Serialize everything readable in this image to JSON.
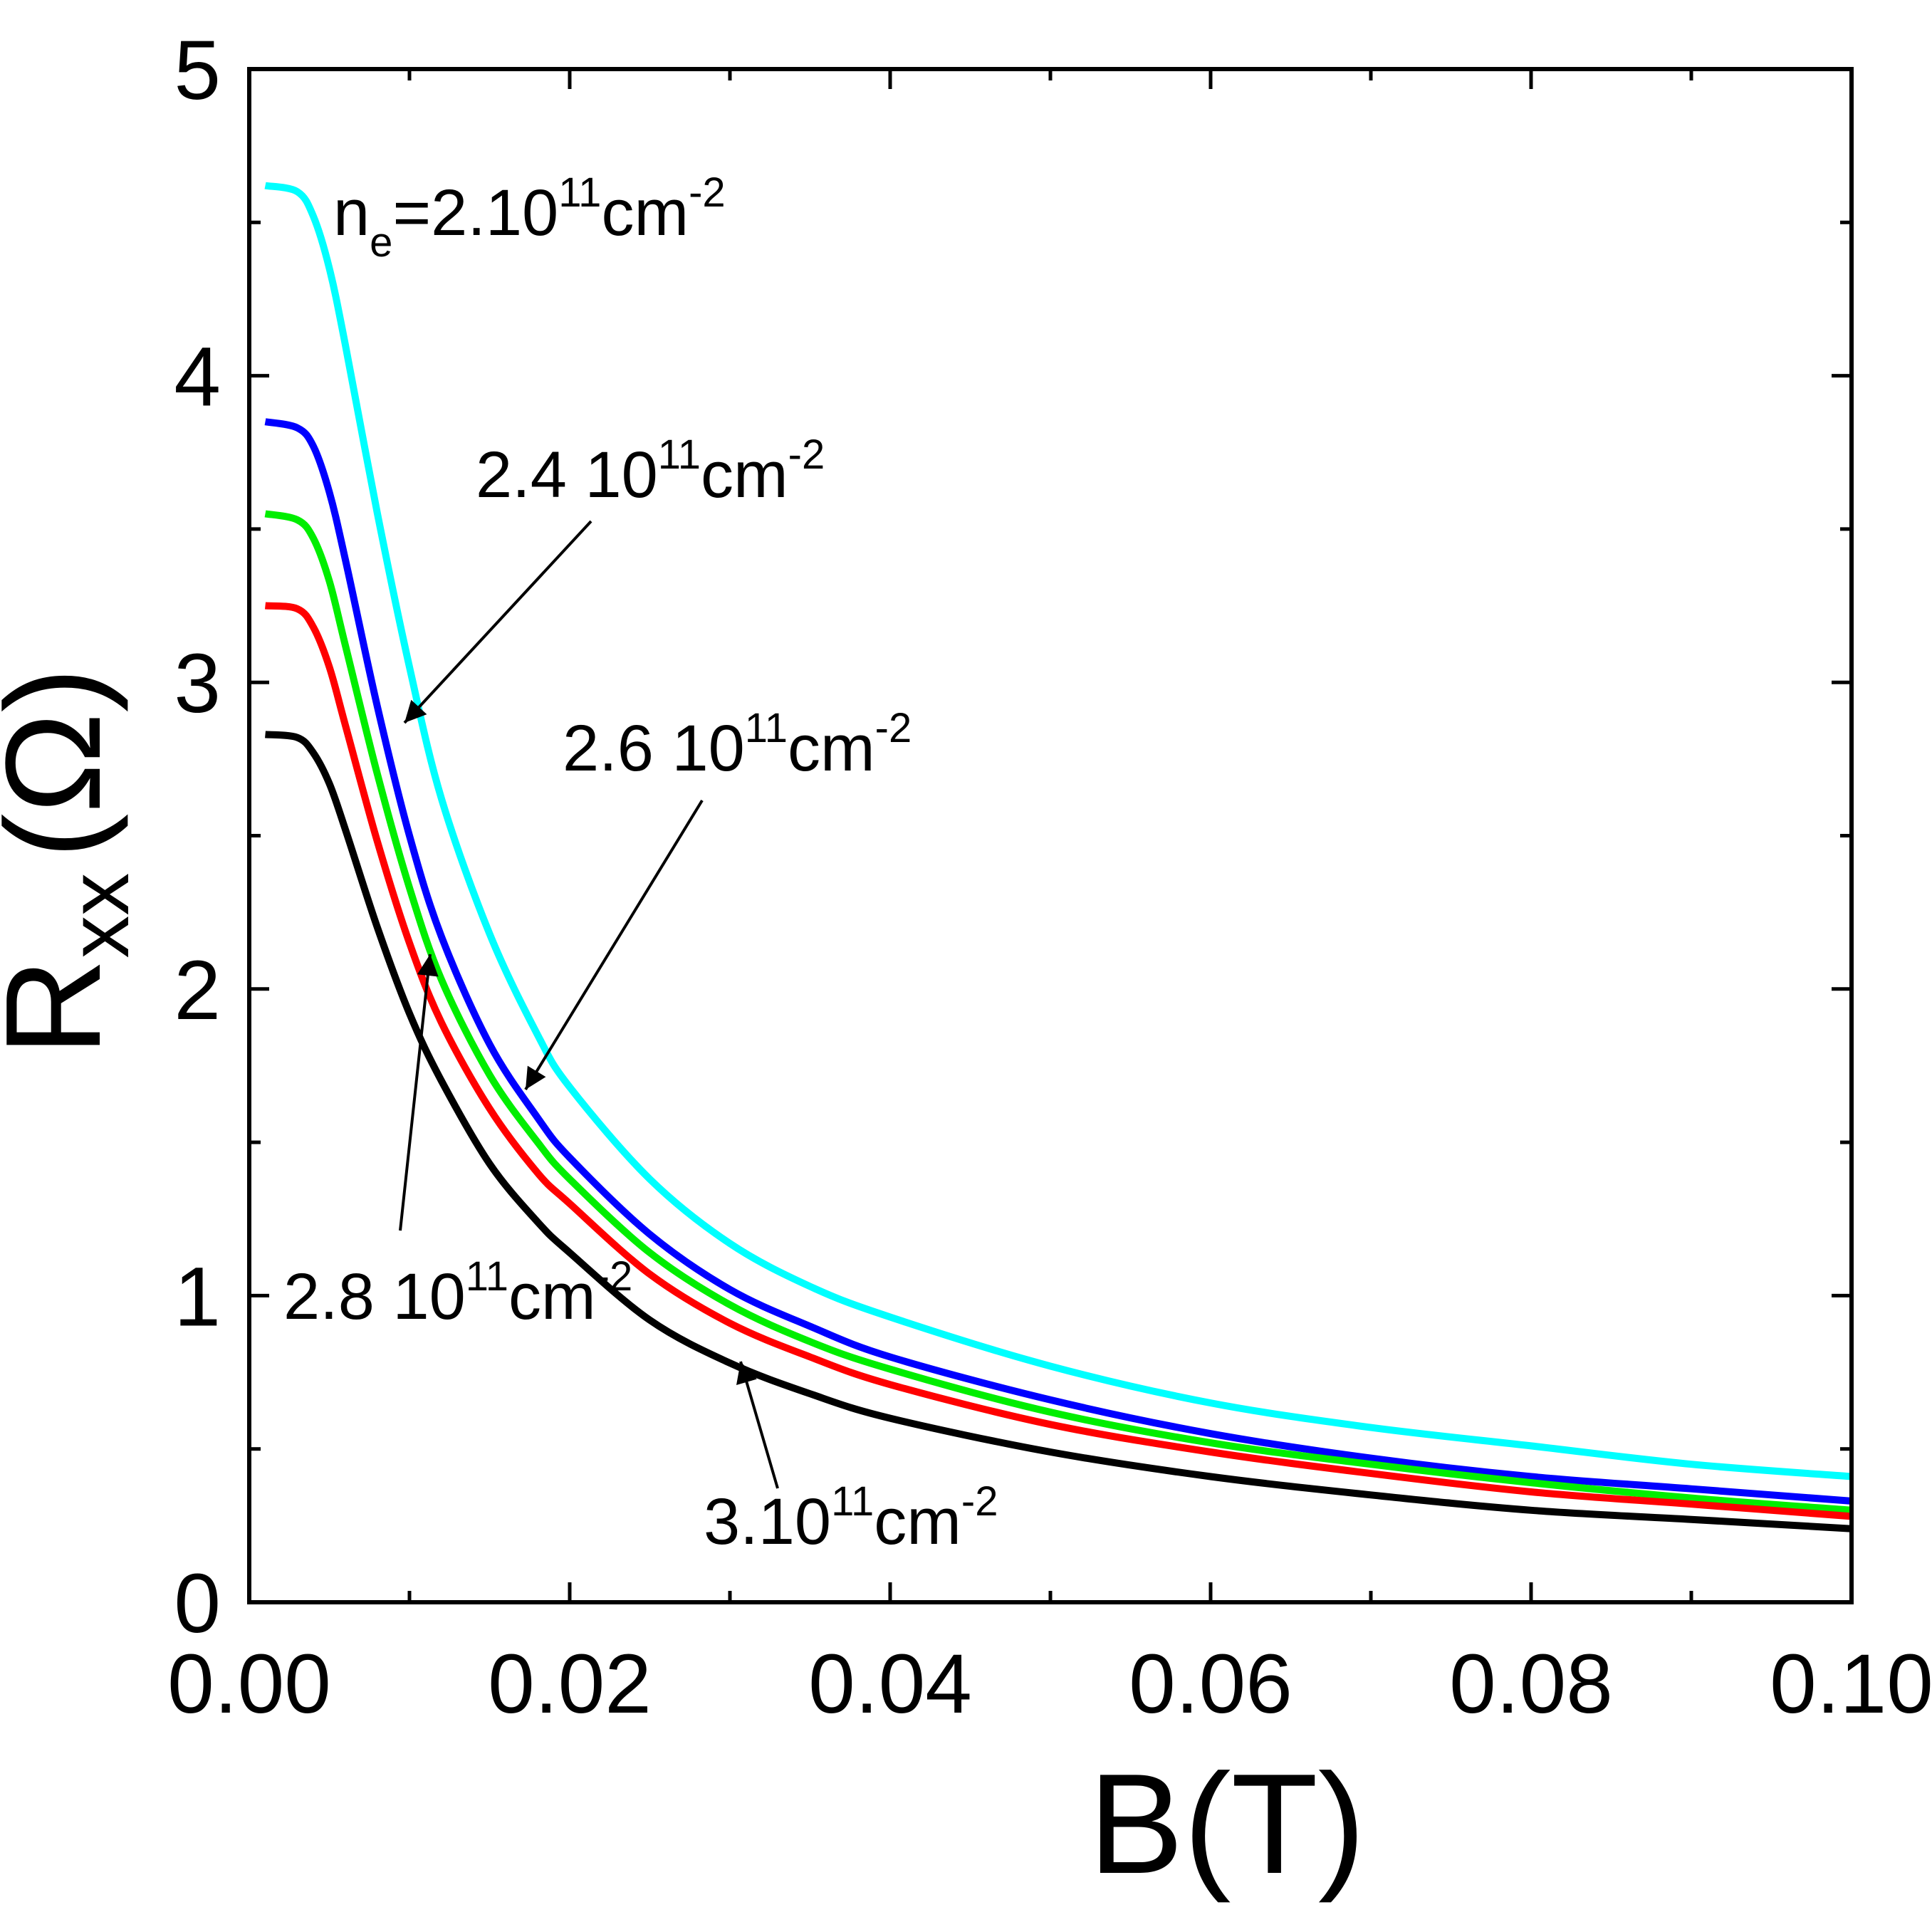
{
  "chart_data": {
    "type": "line",
    "title": "",
    "xlabel": "B(T)",
    "ylabel": {
      "main": "R",
      "sub": "xx",
      "unit": "(Ω)"
    },
    "xlim": [
      0,
      0.1
    ],
    "ylim": [
      0,
      5
    ],
    "x_ticks": [
      0.0,
      0.02,
      0.04,
      0.06,
      0.08,
      0.1
    ],
    "x_tick_labels": [
      "0.00",
      "0.02",
      "0.04",
      "0.06",
      "0.08",
      "0.10"
    ],
    "y_ticks": [
      0,
      1,
      2,
      3,
      4,
      5
    ],
    "y_tick_labels": [
      "0",
      "1",
      "2",
      "3",
      "4",
      "5"
    ],
    "grid": false,
    "x": [
      0.001,
      0.003,
      0.004,
      0.005,
      0.006,
      0.008,
      0.01,
      0.012,
      0.015,
      0.018,
      0.02,
      0.025,
      0.03,
      0.035,
      0.04,
      0.05,
      0.06,
      0.07,
      0.08,
      0.09,
      0.1
    ],
    "series": [
      {
        "name": "2.10^11 cm^-2",
        "color": "#00ffff",
        "values": [
          4.62,
          4.6,
          4.52,
          4.35,
          4.1,
          3.55,
          3.05,
          2.62,
          2.18,
          1.85,
          1.68,
          1.38,
          1.17,
          1.03,
          0.93,
          0.77,
          0.65,
          0.57,
          0.51,
          0.45,
          0.41
        ]
      },
      {
        "name": "2.4 10^11 cm^-2",
        "color": "#0000ff",
        "values": [
          3.85,
          3.83,
          3.77,
          3.62,
          3.4,
          2.92,
          2.5,
          2.17,
          1.82,
          1.58,
          1.45,
          1.2,
          1.02,
          0.9,
          0.8,
          0.66,
          0.55,
          0.47,
          0.41,
          0.37,
          0.33
        ]
      },
      {
        "name": "2.6 10^11 cm^-2",
        "color": "#00ee00",
        "values": [
          3.55,
          3.53,
          3.47,
          3.33,
          3.12,
          2.7,
          2.33,
          2.03,
          1.72,
          1.5,
          1.38,
          1.14,
          0.97,
          0.85,
          0.76,
          0.62,
          0.52,
          0.45,
          0.39,
          0.34,
          0.3
        ]
      },
      {
        "name": "2.8 10^11 cm^-2",
        "color": "#ff0000",
        "values": [
          3.25,
          3.24,
          3.18,
          3.05,
          2.86,
          2.48,
          2.15,
          1.89,
          1.61,
          1.4,
          1.3,
          1.07,
          0.91,
          0.8,
          0.71,
          0.58,
          0.49,
          0.42,
          0.36,
          0.32,
          0.28
        ]
      },
      {
        "name": "3.10^11 cm^-2",
        "color": "#000000",
        "values": [
          2.83,
          2.82,
          2.77,
          2.67,
          2.52,
          2.2,
          1.92,
          1.7,
          1.43,
          1.24,
          1.14,
          0.92,
          0.78,
          0.68,
          0.6,
          0.49,
          0.41,
          0.35,
          0.3,
          0.27,
          0.24
        ]
      }
    ],
    "annotations": [
      {
        "id": "ne20",
        "pre": "n",
        "sub": "e",
        "text": "=2.10",
        "sup1": "11",
        "unit": "cm",
        "sup2": "-2"
      },
      {
        "id": "ne24",
        "text": "2.4 10",
        "sup1": "11",
        "unit": "cm",
        "sup2": "-2"
      },
      {
        "id": "ne26",
        "text": "2.6 10",
        "sup1": "11",
        "unit": "cm",
        "sup2": "-2"
      },
      {
        "id": "ne28",
        "text": "2.8 10",
        "sup1": "11",
        "unit": "cm",
        "sup2": "-2"
      },
      {
        "id": "ne30",
        "text": "3.10",
        "sup1": "11",
        "unit": "cm",
        "sup2": "-2"
      }
    ]
  }
}
